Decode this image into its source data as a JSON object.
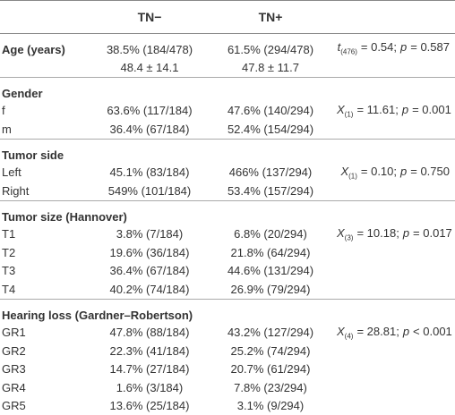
{
  "table": {
    "columns": [
      "TN−",
      "TN+"
    ],
    "sections": [
      {
        "title": "Age (years)",
        "values": [
          "38.5% (184/478)",
          "61.5% (294/478)"
        ],
        "stat": {
          "var": "t",
          "sub": "(476)",
          "value": "= 0.54;",
          "pvar": "p",
          "pvalue": "= 0.587"
        },
        "rows": [
          {
            "values": [
              "48.4 ± 14.1",
              "47.8 ± 11.7"
            ]
          }
        ]
      },
      {
        "title": "Gender",
        "rows": [
          {
            "label": "f",
            "values": [
              "63.6% (117/184)",
              "47.6% (140/294)"
            ],
            "stat": {
              "var": "X",
              "sub": "(1)",
              "value": "= 11.61;",
              "pvar": "p",
              "pvalue": "= 0.001"
            }
          },
          {
            "label": "m",
            "values": [
              "36.4% (67/184)",
              "52.4% (154/294)"
            ]
          }
        ]
      },
      {
        "title": "Tumor side",
        "rows": [
          {
            "label": "Left",
            "values": [
              "45.1% (83/184)",
              "466% (137/294)"
            ],
            "stat": {
              "var": "X",
              "sub": "(1)",
              "value": "= 0.10;",
              "pvar": "p",
              "pvalue": "= 0.750"
            }
          },
          {
            "label": "Right",
            "values": [
              "549% (101/184)",
              "53.4% (157/294)"
            ]
          }
        ]
      },
      {
        "title": "Tumor size (Hannover)",
        "rows": [
          {
            "label": "T1",
            "values": [
              "3.8% (7/184)",
              "6.8% (20/294)"
            ],
            "stat": {
              "var": "X",
              "sub": "(3)",
              "value": "= 10.18;",
              "pvar": "p",
              "pvalue": "= 0.017"
            }
          },
          {
            "label": "T2",
            "values": [
              "19.6% (36/184)",
              "21.8% (64/294)"
            ]
          },
          {
            "label": "T3",
            "values": [
              "36.4% (67/184)",
              "44.6% (131/294)"
            ]
          },
          {
            "label": "T4",
            "values": [
              "40.2% (74/184)",
              "26.9% (79/294)"
            ]
          }
        ]
      },
      {
        "title": "Hearing loss (Gardner–Robertson)",
        "rows": [
          {
            "label": "GR1",
            "values": [
              "47.8% (88/184)",
              "43.2% (127/294)"
            ],
            "stat": {
              "var": "X",
              "sub": "(4)",
              "value": "= 28.81;",
              "pvar": "p",
              "pvalue": "< 0.001"
            }
          },
          {
            "label": "GR2",
            "values": [
              "22.3% (41/184)",
              "25.2% (74/294)"
            ]
          },
          {
            "label": "GR3",
            "values": [
              "14.7% (27/184)",
              "20.7% (61/294)"
            ]
          },
          {
            "label": "GR4",
            "values": [
              "1.6% (3/184)",
              "7.8% (23/294)"
            ]
          },
          {
            "label": "GR5",
            "values": [
              "13.6% (25/184)",
              "3.1% (9/294)"
            ]
          }
        ]
      }
    ]
  }
}
